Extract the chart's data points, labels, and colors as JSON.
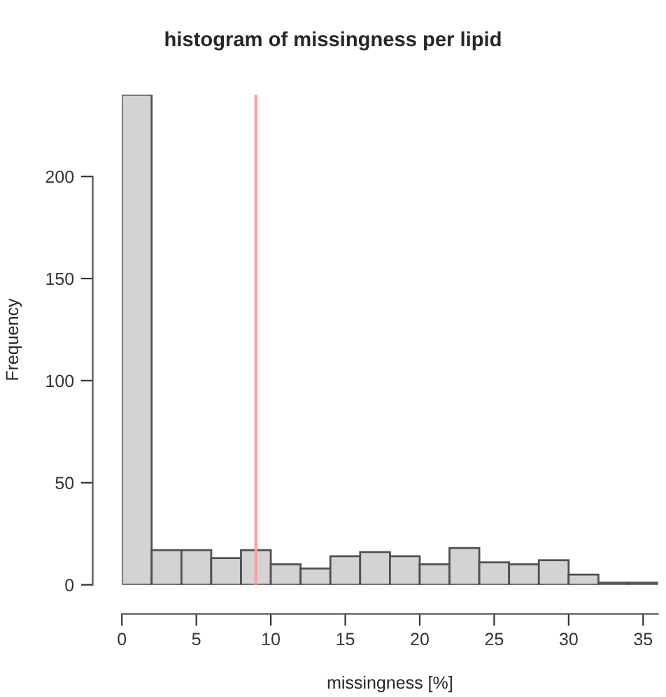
{
  "chart_data": {
    "type": "histogram",
    "title": "histogram of missingness per lipid",
    "xlabel": "missingness [%]",
    "ylabel": "Frequency",
    "bins": [
      0,
      2,
      4,
      6,
      8,
      10,
      12,
      14,
      16,
      18,
      20,
      22,
      24,
      26,
      28,
      30,
      32,
      34,
      36
    ],
    "values": [
      240,
      17,
      17,
      13,
      17,
      10,
      8,
      14,
      16,
      14,
      10,
      18,
      11,
      10,
      12,
      5,
      1,
      1
    ],
    "color": "#d3d3d3",
    "xlim": [
      0,
      36
    ],
    "ylim": [
      0,
      240
    ],
    "xticks": [
      0,
      5,
      10,
      15,
      20,
      25,
      30,
      35
    ],
    "yticks": [
      0,
      50,
      100,
      150,
      200
    ],
    "ref_lines": [
      {
        "axis": "x",
        "value": 9,
        "color": "#ff9c9c"
      }
    ],
    "grid": false,
    "legend": false
  }
}
